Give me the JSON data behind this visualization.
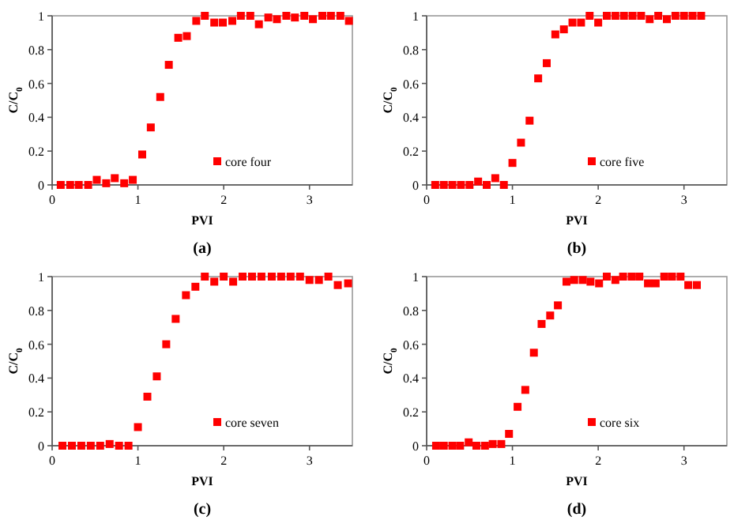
{
  "chart_data": [
    {
      "type": "scatter",
      "xlabel": "PVI",
      "ylabel": "C/C$_{0}$",
      "xlim": [
        0,
        3.5
      ],
      "xticks": [
        0,
        1,
        2,
        3
      ],
      "ylim": [
        0,
        1
      ],
      "yticks": [
        0,
        0.2,
        0.4,
        0.6,
        0.8,
        1
      ],
      "marker": "square",
      "legend": "bottom",
      "annotations": [
        "(a)"
      ],
      "series": [
        {
          "name": "core four",
          "color": "#ff0000",
          "x": [
            0.1,
            0.21,
            0.31,
            0.42,
            0.52,
            0.63,
            0.73,
            0.84,
            0.94,
            1.05,
            1.15,
            1.26,
            1.36,
            1.47,
            1.57,
            1.68,
            1.78,
            1.89,
            1.99,
            2.1,
            2.2,
            2.31,
            2.41,
            2.52,
            2.62,
            2.73,
            2.83,
            2.94,
            3.04,
            3.15,
            3.25,
            3.36,
            3.46
          ],
          "values": [
            0,
            0,
            0,
            0,
            0.03,
            0.01,
            0.04,
            0.01,
            0.03,
            0.18,
            0.34,
            0.52,
            0.71,
            0.87,
            0.88,
            0.97,
            1,
            0.96,
            0.96,
            0.97,
            1,
            1,
            0.95,
            0.99,
            0.98,
            1,
            0.99,
            1,
            0.98,
            1,
            1,
            1,
            0.97
          ]
        }
      ]
    },
    {
      "type": "scatter",
      "xlabel": "PVI",
      "ylabel": "C/C$_{0}$",
      "xlim": [
        0,
        3.5
      ],
      "xticks": [
        0,
        1,
        2,
        3
      ],
      "ylim": [
        0,
        1
      ],
      "yticks": [
        0,
        0.2,
        0.4,
        0.6,
        0.8,
        1
      ],
      "marker": "square",
      "legend": "bottom",
      "annotations": [
        "(b)"
      ],
      "series": [
        {
          "name": "core five",
          "color": "#ff0000",
          "x": [
            0.1,
            0.2,
            0.3,
            0.4,
            0.5,
            0.6,
            0.7,
            0.8,
            0.9,
            1.0,
            1.1,
            1.2,
            1.3,
            1.4,
            1.5,
            1.6,
            1.7,
            1.8,
            1.9,
            2.0,
            2.1,
            2.2,
            2.3,
            2.4,
            2.5,
            2.6,
            2.7,
            2.8,
            2.9,
            3.0,
            3.1,
            3.2
          ],
          "values": [
            0,
            0,
            0,
            0,
            0,
            0.02,
            0,
            0.04,
            0,
            0.13,
            0.25,
            0.38,
            0.63,
            0.72,
            0.89,
            0.92,
            0.96,
            0.96,
            1,
            0.96,
            1,
            1,
            1,
            1,
            1,
            0.98,
            1,
            0.98,
            1,
            1,
            1,
            1
          ]
        }
      ]
    },
    {
      "type": "scatter",
      "xlabel": "PVI",
      "ylabel": "C/C$_{0}$",
      "xlim": [
        0,
        3.5
      ],
      "xticks": [
        0,
        1,
        2,
        3
      ],
      "ylim": [
        0,
        1
      ],
      "yticks": [
        0,
        0.2,
        0.4,
        0.6,
        0.8,
        1
      ],
      "marker": "square",
      "legend": "bottom",
      "annotations": [
        "(c)"
      ],
      "series": [
        {
          "name": "core seven",
          "color": "#ff0000",
          "x": [
            0.12,
            0.23,
            0.34,
            0.45,
            0.56,
            0.67,
            0.78,
            0.89,
            1.0,
            1.11,
            1.22,
            1.33,
            1.44,
            1.56,
            1.67,
            1.78,
            1.89,
            2.0,
            2.11,
            2.22,
            2.33,
            2.44,
            2.56,
            2.67,
            2.78,
            2.89,
            3.0,
            3.11,
            3.22,
            3.33,
            3.45
          ],
          "values": [
            0,
            0,
            0,
            0,
            0,
            0.01,
            0,
            0,
            0.11,
            0.29,
            0.41,
            0.6,
            0.75,
            0.89,
            0.94,
            1,
            0.97,
            1,
            0.97,
            1,
            1,
            1,
            1,
            1,
            1,
            1,
            0.98,
            0.98,
            1,
            0.95,
            0.96
          ]
        }
      ]
    },
    {
      "type": "scatter",
      "xlabel": "PVI",
      "ylabel": "C/C$_{0}$",
      "xlim": [
        0,
        3.5
      ],
      "xticks": [
        0,
        1,
        2,
        3
      ],
      "ylim": [
        0,
        1
      ],
      "yticks": [
        0,
        0.2,
        0.4,
        0.6,
        0.8,
        1
      ],
      "marker": "square",
      "legend": "bottom",
      "annotations": [
        "(d)"
      ],
      "series": [
        {
          "name": "core six",
          "color": "#ff0000",
          "x": [
            0.11,
            0.2,
            0.3,
            0.39,
            0.49,
            0.58,
            0.68,
            0.77,
            0.87,
            0.96,
            1.06,
            1.15,
            1.25,
            1.34,
            1.44,
            1.53,
            1.63,
            1.72,
            1.82,
            1.91,
            2.01,
            2.1,
            2.2,
            2.29,
            2.39,
            2.48,
            2.58,
            2.67,
            2.77,
            2.86,
            2.96,
            3.05,
            3.15
          ],
          "values": [
            0,
            0,
            0,
            0,
            0.02,
            0,
            0,
            0.01,
            0.01,
            0.07,
            0.23,
            0.33,
            0.55,
            0.72,
            0.77,
            0.83,
            0.97,
            0.98,
            0.98,
            0.97,
            0.96,
            1,
            0.98,
            1,
            1,
            1,
            0.96,
            0.96,
            1,
            1,
            1,
            0.95,
            0.95
          ]
        }
      ]
    }
  ]
}
